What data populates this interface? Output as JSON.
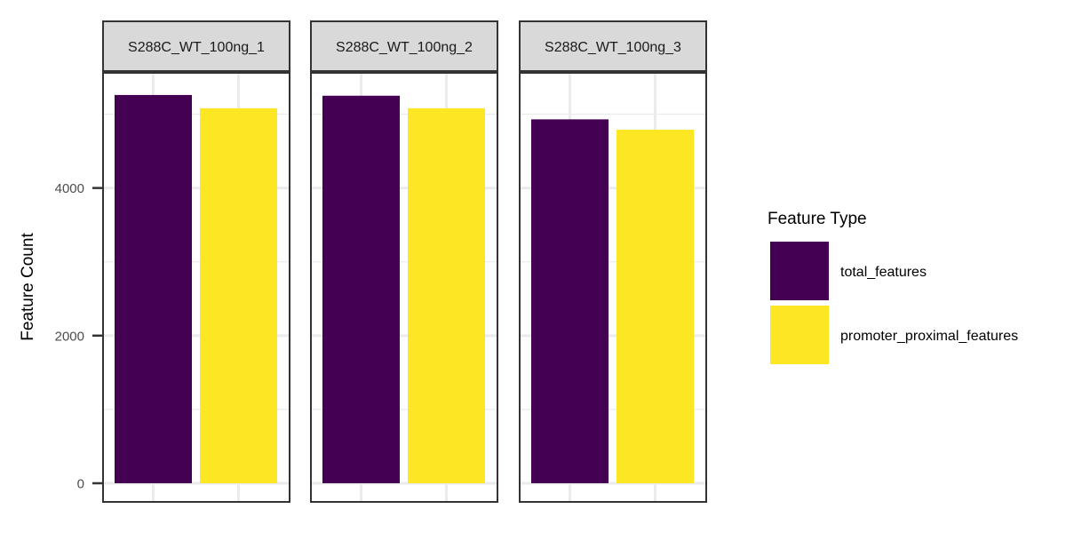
{
  "chart_data": {
    "type": "bar",
    "facets": [
      "S288C_WT_100ng_1",
      "S288C_WT_100ng_2",
      "S288C_WT_100ng_3"
    ],
    "series": [
      {
        "name": "total_features",
        "color": "#440154",
        "values": [
          5260,
          5250,
          4930
        ]
      },
      {
        "name": "promoter_proximal_features",
        "color": "#FDE725",
        "values": [
          5080,
          5080,
          4790
        ]
      }
    ],
    "xlabel": "",
    "ylabel": "Feature Count",
    "ylim": [
      0,
      5560
    ],
    "yticks": [
      0,
      2000,
      4000
    ],
    "grid": true,
    "legend": {
      "title": "Feature Type",
      "position": "right"
    }
  }
}
